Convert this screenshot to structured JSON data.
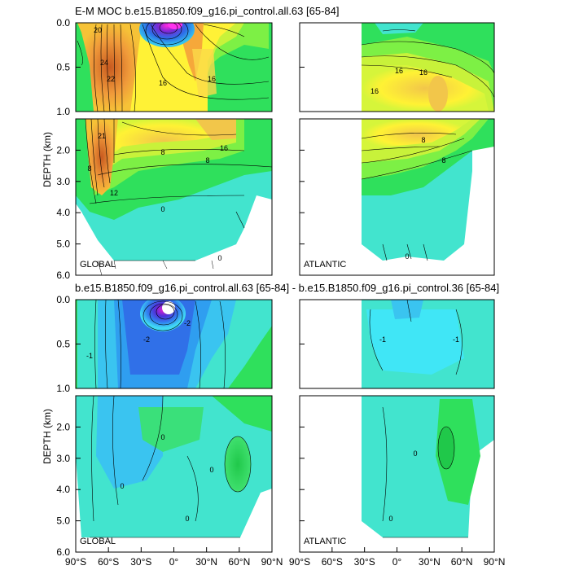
{
  "chart_data": [
    {
      "type": "heatmap",
      "title": "E-M MOC  b.e15.B1850.f09_g16.pi_control.all.63 [65-84]",
      "ylabel": "DEPTH (km)",
      "y_ticks_upper": [
        "0.0",
        "0.5",
        "1.0"
      ],
      "y_ticks_lower": [
        "2.0",
        "3.0",
        "4.0",
        "5.0",
        "6.0"
      ],
      "panels": [
        {
          "name": "GLOBAL",
          "cells": [
            {
              "lat": -75,
              "depth": 0.5,
              "value": 22
            },
            {
              "lat": -55,
              "depth": 0.3,
              "value": 24
            },
            {
              "lat": -55,
              "depth": 1.0,
              "value": 20
            },
            {
              "lat": -50,
              "depth": 1.8,
              "value": 21
            },
            {
              "lat": -50,
              "depth": 2.8,
              "value": 12
            },
            {
              "lat": -40,
              "depth": 1.5,
              "value": 12
            },
            {
              "lat": -25,
              "depth": 0.1,
              "value": -20
            },
            {
              "lat": -10,
              "depth": 0.05,
              "value": -40
            },
            {
              "lat": -5,
              "depth": 0.05,
              "value": -30
            },
            {
              "lat": 0,
              "depth": 0.3,
              "value": 4
            },
            {
              "lat": 15,
              "depth": 0.05,
              "value": 20
            },
            {
              "lat": 15,
              "depth": 0.5,
              "value": 16
            },
            {
              "lat": 20,
              "depth": 1.0,
              "value": 16
            },
            {
              "lat": 35,
              "depth": 1.8,
              "value": 16
            },
            {
              "lat": 25,
              "depth": 2.2,
              "value": 8
            },
            {
              "lat": 0,
              "depth": 3.5,
              "value": 2
            },
            {
              "lat": -20,
              "depth": 4.2,
              "value": 2
            },
            {
              "lat": 10,
              "depth": 5.0,
              "value": 0
            }
          ],
          "contour_labels": [
            "20",
            "24",
            "22",
            "16",
            "16",
            "16",
            "8",
            "8",
            "12",
            "21",
            "8",
            "0",
            "0"
          ]
        },
        {
          "name": "ATLANTIC",
          "cells": [
            {
              "lat": -10,
              "depth": 0.05,
              "value": 4
            },
            {
              "lat": 20,
              "depth": 0.6,
              "value": 16
            },
            {
              "lat": 40,
              "depth": 1.2,
              "value": 20
            },
            {
              "lat": 30,
              "depth": 1.7,
              "value": 16
            },
            {
              "lat": 10,
              "depth": 2.2,
              "value": 8
            },
            {
              "lat": 0,
              "depth": 3.5,
              "value": 2
            },
            {
              "lat": 10,
              "depth": 4.8,
              "value": 0
            }
          ],
          "contour_labels": [
            "16",
            "16",
            "16",
            "8",
            "8",
            "0"
          ]
        }
      ]
    },
    {
      "type": "heatmap",
      "title": "b.e15.B1850.f09_g16.pi_control.all.63 [65-84] - b.e15.B1850.f09_g16.pi_control.36 [65-84]",
      "ylabel": "DEPTH (km)",
      "y_ticks_upper": [
        "0.0",
        "0.5",
        "1.0"
      ],
      "y_ticks_lower": [
        "2.0",
        "3.0",
        "4.0",
        "5.0",
        "6.0"
      ],
      "x_ticks": [
        "90°S",
        "60°S",
        "30°S",
        "0°",
        "30°N",
        "60°N",
        "90°N"
      ],
      "panels": [
        {
          "name": "GLOBAL",
          "cells": [
            {
              "lat": -10,
              "depth": 0.1,
              "value": -8
            },
            {
              "lat": -5,
              "depth": 0.05,
              "value": -6
            },
            {
              "lat": -20,
              "depth": 0.4,
              "value": -2
            },
            {
              "lat": -50,
              "depth": 0.4,
              "value": -1
            },
            {
              "lat": 30,
              "depth": 0.5,
              "value": 0
            },
            {
              "lat": 0,
              "depth": 2.5,
              "value": 0
            },
            {
              "lat": 40,
              "depth": 2.6,
              "value": 1
            },
            {
              "lat": -20,
              "depth": 3.8,
              "value": 0
            }
          ],
          "contour_labels": [
            "-2",
            "-2",
            "-1",
            "0",
            "0",
            "0",
            "0"
          ]
        },
        {
          "name": "ATLANTIC",
          "cells": [
            {
              "lat": 0,
              "depth": 0.5,
              "value": -1
            },
            {
              "lat": 35,
              "depth": 0.6,
              "value": -1
            },
            {
              "lat": 45,
              "depth": 2.8,
              "value": 1
            },
            {
              "lat": 10,
              "depth": 2.5,
              "value": 0
            },
            {
              "lat": 10,
              "depth": 4.8,
              "value": 0
            }
          ],
          "contour_labels": [
            "-1",
            "-1",
            "0",
            "0"
          ]
        }
      ]
    }
  ]
}
